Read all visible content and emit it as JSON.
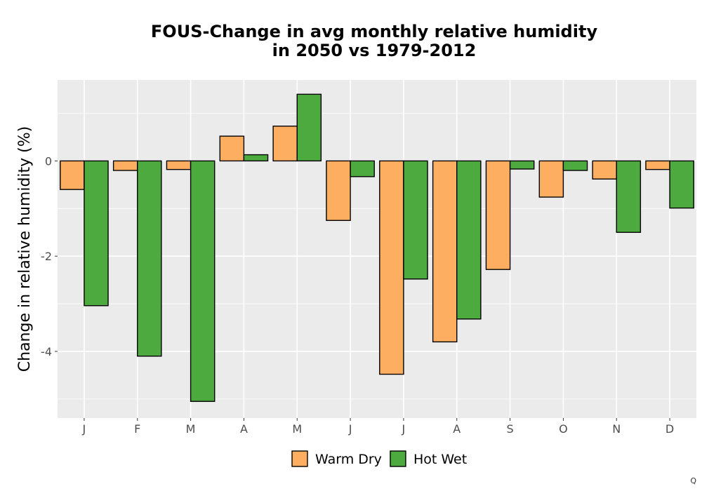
{
  "chart_data": {
    "type": "bar",
    "title_lines": [
      "FOUS-Change in avg monthly relative humidity",
      "in 2050 vs 1979-2012"
    ],
    "xlabel": "",
    "ylabel": "Change in relative humidity (%)",
    "categories": [
      "J",
      "F",
      "M",
      "A",
      "M",
      "J",
      "J",
      "A",
      "S",
      "O",
      "N",
      "D"
    ],
    "series": [
      {
        "name": "Warm Dry",
        "color": "#FDAE61",
        "values": [
          -0.6,
          -0.2,
          -0.18,
          0.52,
          0.73,
          -1.25,
          -4.48,
          -3.8,
          -2.28,
          -0.76,
          -0.38,
          -0.18
        ]
      },
      {
        "name": "Hot Wet",
        "color": "#4DAA3E",
        "values": [
          -3.04,
          -4.1,
          -5.05,
          0.13,
          1.4,
          -0.33,
          -2.48,
          -3.32,
          -0.17,
          -0.2,
          -1.5,
          -0.99
        ]
      }
    ],
    "ylim": [
      -5.4,
      1.7
    ],
    "yticks": [
      -4,
      -2,
      0
    ],
    "ytick_labels": [
      "-4",
      "-2",
      "0"
    ],
    "grid": true,
    "legend_position": "bottom",
    "legend_labels": [
      "Warm Dry",
      "Hot Wet"
    ]
  },
  "corner_mark": "Q"
}
